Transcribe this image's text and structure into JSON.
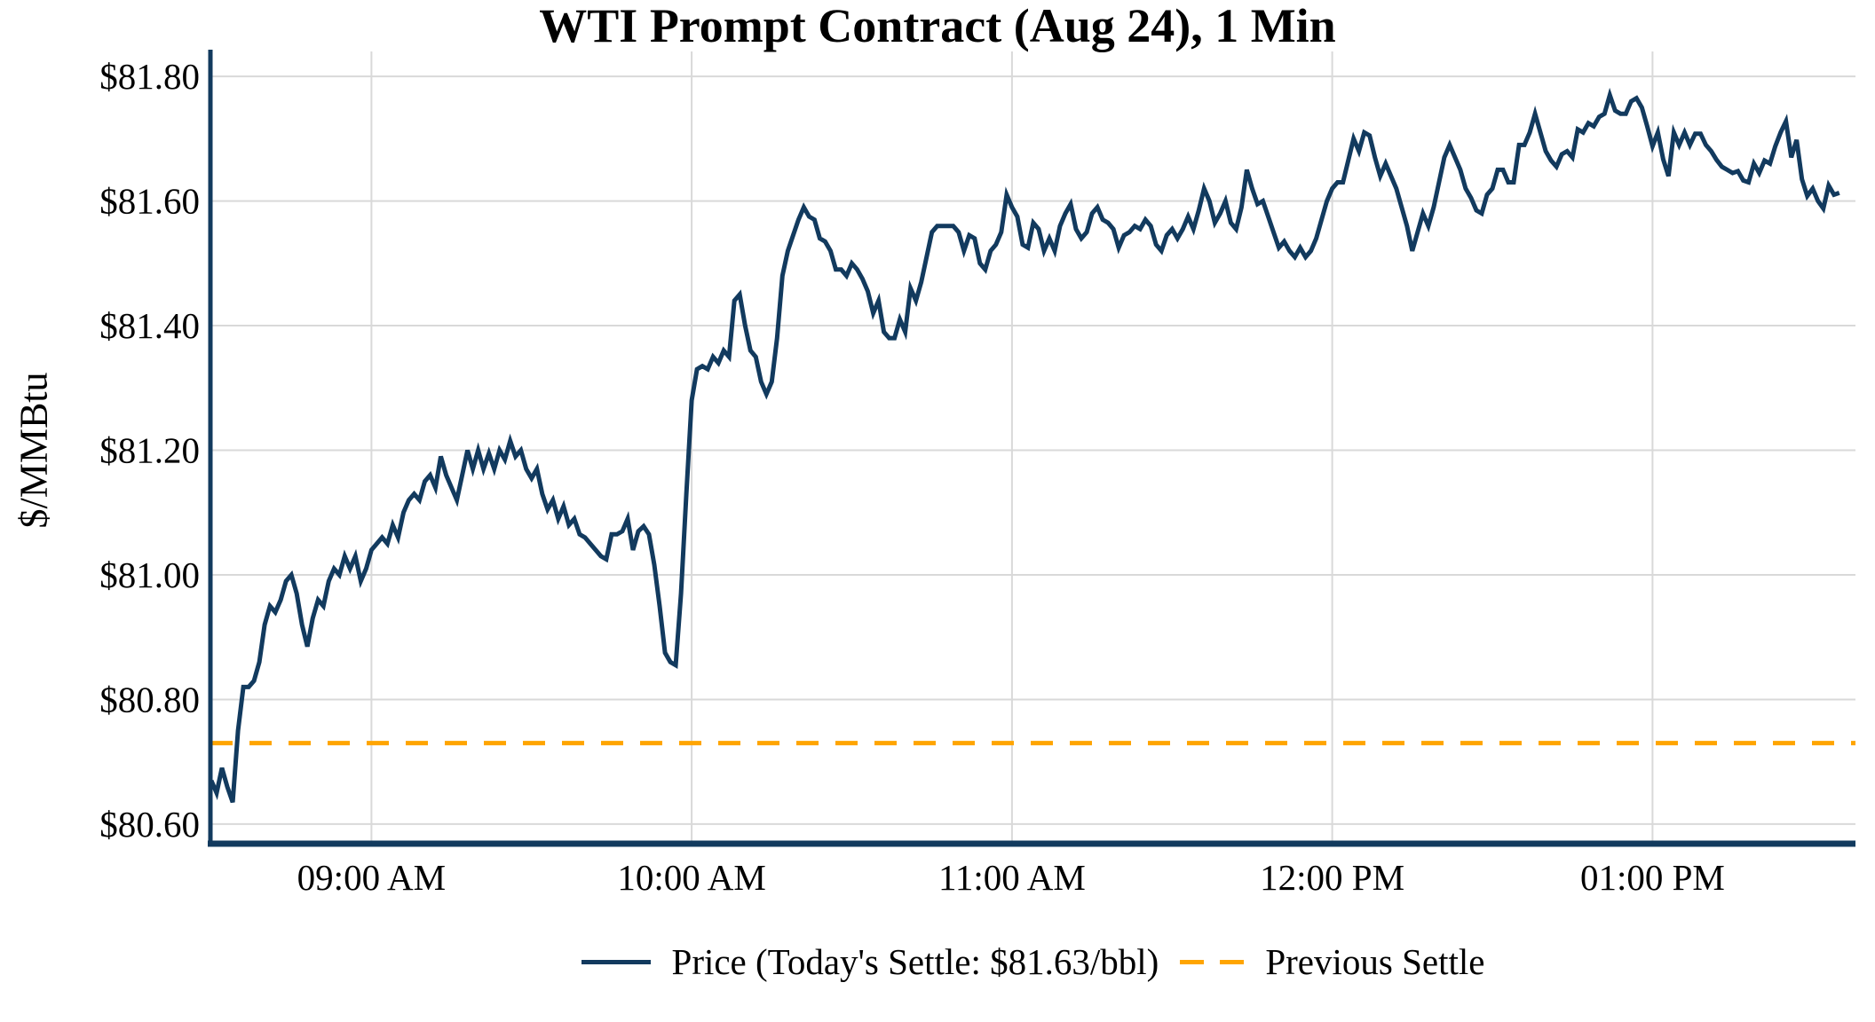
{
  "chart_data": {
    "type": "line",
    "title": "WTI Prompt Contract (Aug 24), 1 Min",
    "xlabel": "",
    "ylabel": "$/MMBtu",
    "grid": true,
    "legend_position": "bottom-center",
    "ylim": [
      80.57,
      81.84
    ],
    "y_ticks": [
      81.8,
      81.6,
      81.4,
      81.2,
      81.0,
      80.8,
      80.6
    ],
    "y_tick_labels": [
      "$81.80",
      "$81.60",
      "$81.40",
      "$81.20",
      "$81.00",
      "$80.80",
      "$80.60"
    ],
    "x_tick_labels": [
      "09:00 AM",
      "10:00 AM",
      "11:00 AM",
      "12:00 PM",
      "01:00 PM"
    ],
    "x_tick_offsets_min": [
      30,
      90,
      150,
      210,
      270
    ],
    "x_start": "08:30 AM",
    "x_end": "01:35 PM",
    "interval_minutes": 1,
    "todays_settle": 81.63,
    "previous_settle": 80.73,
    "series_labels": {
      "price": "Price (Today's Settle: $81.63/bbl)",
      "previous_settle": "Previous Settle"
    },
    "colors": {
      "price_line": "#123a5e",
      "previous_settle_line": "#ffa500",
      "gridline": "#d9d9d9",
      "axis": "#123a5e",
      "text": "#000000",
      "background": "#ffffff"
    },
    "series": [
      {
        "name": "Price (Today's Settle: $81.63/bbl)",
        "style": "solid",
        "color": "#123a5e",
        "values": [
          80.67,
          80.65,
          80.69,
          80.66,
          80.635,
          80.75,
          80.82,
          80.82,
          80.83,
          80.86,
          80.92,
          80.95,
          80.94,
          80.96,
          80.99,
          81.0,
          80.97,
          80.92,
          80.885,
          80.93,
          80.96,
          80.95,
          80.99,
          81.01,
          81.0,
          81.03,
          81.01,
          81.03,
          80.99,
          81.01,
          81.04,
          81.05,
          81.06,
          81.05,
          81.08,
          81.06,
          81.1,
          81.12,
          81.13,
          81.12,
          81.15,
          81.16,
          81.14,
          81.19,
          81.16,
          81.14,
          81.12,
          81.16,
          81.2,
          81.17,
          81.2,
          81.17,
          81.195,
          81.17,
          81.2,
          81.185,
          81.215,
          81.19,
          81.2,
          81.17,
          81.155,
          81.17,
          81.13,
          81.105,
          81.12,
          81.09,
          81.11,
          81.08,
          81.09,
          81.065,
          81.06,
          81.05,
          81.04,
          81.03,
          81.025,
          81.065,
          81.065,
          81.07,
          81.09,
          81.04,
          81.07,
          81.078,
          81.065,
          81.016,
          80.95,
          80.875,
          80.86,
          80.855,
          80.97,
          81.13,
          81.28,
          81.33,
          81.335,
          81.33,
          81.35,
          81.34,
          81.36,
          81.35,
          81.44,
          81.45,
          81.4,
          81.36,
          81.35,
          81.31,
          81.29,
          81.31,
          81.38,
          81.48,
          81.52,
          81.545,
          81.57,
          81.59,
          81.575,
          81.57,
          81.54,
          81.535,
          81.52,
          81.49,
          81.49,
          81.48,
          81.5,
          81.49,
          81.475,
          81.455,
          81.42,
          81.44,
          81.39,
          81.38,
          81.38,
          81.41,
          81.39,
          81.46,
          81.44,
          81.47,
          81.51,
          81.55,
          81.56,
          81.56,
          81.56,
          81.56,
          81.55,
          81.52,
          81.545,
          81.54,
          81.5,
          81.49,
          81.52,
          81.53,
          81.55,
          81.61,
          81.59,
          81.575,
          81.53,
          81.525,
          81.565,
          81.555,
          81.52,
          81.54,
          81.52,
          81.56,
          81.58,
          81.595,
          81.555,
          81.54,
          81.55,
          81.58,
          81.59,
          81.57,
          81.565,
          81.555,
          81.525,
          81.545,
          81.55,
          81.56,
          81.555,
          81.57,
          81.56,
          81.53,
          81.52,
          81.545,
          81.555,
          81.54,
          81.555,
          81.575,
          81.555,
          81.585,
          81.62,
          81.6,
          81.565,
          81.58,
          81.6,
          81.565,
          81.555,
          81.59,
          81.65,
          81.62,
          81.595,
          81.6,
          81.575,
          81.55,
          81.525,
          81.535,
          81.52,
          81.51,
          81.525,
          81.51,
          81.52,
          81.54,
          81.57,
          81.6,
          81.62,
          81.63,
          81.63,
          81.665,
          81.7,
          81.68,
          81.71,
          81.705,
          81.67,
          81.64,
          81.66,
          81.64,
          81.62,
          81.59,
          81.56,
          81.52,
          81.55,
          81.58,
          81.56,
          81.59,
          81.63,
          81.67,
          81.69,
          81.67,
          81.65,
          81.62,
          81.605,
          81.585,
          81.58,
          81.61,
          81.62,
          81.65,
          81.65,
          81.63,
          81.63,
          81.69,
          81.69,
          81.71,
          81.74,
          81.71,
          81.68,
          81.665,
          81.655,
          81.675,
          81.68,
          81.67,
          81.715,
          81.71,
          81.725,
          81.72,
          81.735,
          81.74,
          81.77,
          81.745,
          81.74,
          81.74,
          81.76,
          81.765,
          81.75,
          81.72,
          81.688,
          81.71,
          81.667,
          81.64,
          81.71,
          81.69,
          81.71,
          81.69,
          81.708,
          81.708,
          81.69,
          81.68,
          81.666,
          81.655,
          81.65,
          81.645,
          81.648,
          81.633,
          81.63,
          81.66,
          81.645,
          81.665,
          81.66,
          81.688,
          81.71,
          81.728,
          81.67,
          81.698,
          81.635,
          81.608,
          81.62,
          81.6,
          81.588,
          81.625,
          81.61,
          81.613
        ]
      },
      {
        "name": "Previous Settle",
        "style": "dashed",
        "color": "#ffa500",
        "value": 80.73
      }
    ]
  }
}
